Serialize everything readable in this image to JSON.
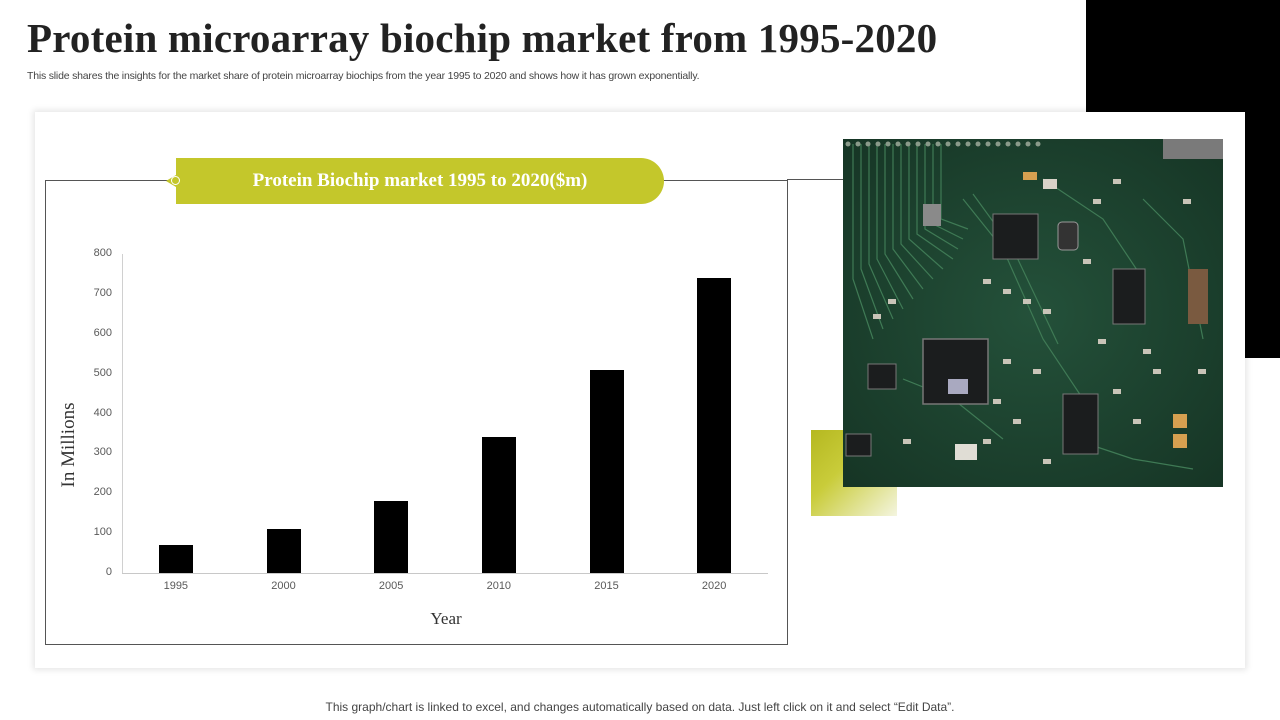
{
  "header": {
    "title": "Protein microarray biochip market from 1995-2020",
    "subtitle": "This slide shares the insights for the market share of protein microarray biochips from the year  1995 to 2020 and shows how it has grown exponentially."
  },
  "chart": {
    "banner_title": "Protein Biochip market 1995 to 2020($m)",
    "ylabel": "In Millions",
    "xlabel": "Year",
    "yticks": [
      "0",
      "100",
      "200",
      "300",
      "400",
      "500",
      "600",
      "700",
      "800"
    ],
    "xticks": [
      "1995",
      "2000",
      "2005",
      "2010",
      "2015",
      "2020"
    ]
  },
  "chart_data": {
    "type": "bar",
    "title": "Protein Biochip market 1995 to 2020($m)",
    "categories": [
      "1995",
      "2000",
      "2005",
      "2010",
      "2015",
      "2020"
    ],
    "values": [
      70,
      110,
      180,
      340,
      510,
      740
    ],
    "xlabel": "Year",
    "ylabel": "In Millions",
    "ylim": [
      0,
      800
    ],
    "yticks": [
      0,
      100,
      200,
      300,
      400,
      500,
      600,
      700,
      800
    ],
    "grid": false,
    "legend": "none",
    "bar_color": "#000000"
  },
  "image": {
    "description": "circuit-board-photo"
  },
  "colors": {
    "accent": "#c4c72b",
    "bars": "#000000",
    "block": "#000000"
  },
  "footer": {
    "note": "This graph/chart is linked to excel, and changes automatically based on data. Just left click on it and select “Edit Data”."
  }
}
